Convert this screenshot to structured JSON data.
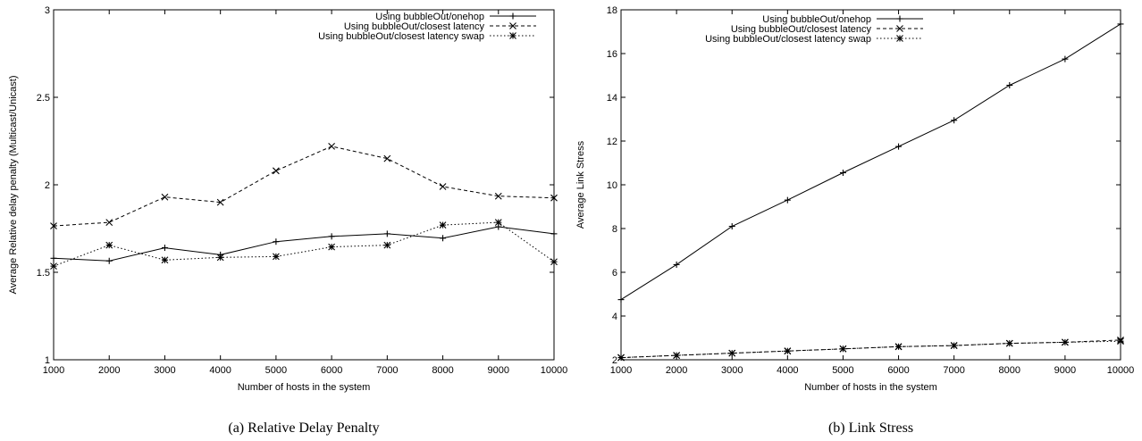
{
  "chart_data": [
    {
      "type": "line",
      "caption": "(a) Relative Delay Penalty",
      "xlabel": "Number of hosts in the system",
      "ylabel": "Average Relative delay penalty (Multicast/Unicast)",
      "x": [
        1000,
        2000,
        3000,
        4000,
        5000,
        6000,
        7000,
        8000,
        9000,
        10000
      ],
      "xlim": [
        1000,
        10000
      ],
      "ylim": [
        1,
        3
      ],
      "xticks": [
        "1000",
        "2000",
        "3000",
        "4000",
        "5000",
        "6000",
        "7000",
        "8000",
        "9000",
        "10000"
      ],
      "yticks": [
        "1",
        "1.5",
        "2",
        "2.5",
        "3"
      ],
      "ytick_values": [
        1,
        1.5,
        2,
        2.5,
        3
      ],
      "grid": false,
      "legend_position": "top-right",
      "series": [
        {
          "name": "Using bubbleOut/onehop",
          "marker": "plus",
          "dash": "solid",
          "values": [
            1.58,
            1.565,
            1.64,
            1.6,
            1.675,
            1.705,
            1.72,
            1.695,
            1.76,
            1.72
          ]
        },
        {
          "name": "Using bubbleOut/closest latency",
          "marker": "cross",
          "dash": "dashed",
          "values": [
            1.765,
            1.785,
            1.93,
            1.9,
            2.08,
            2.22,
            2.15,
            1.99,
            1.935,
            1.925
          ]
        },
        {
          "name": "Using bubbleOut/closest latency swap",
          "marker": "star",
          "dash": "dotted",
          "values": [
            1.535,
            1.655,
            1.57,
            1.585,
            1.59,
            1.645,
            1.655,
            1.77,
            1.785,
            1.56
          ]
        }
      ]
    },
    {
      "type": "line",
      "caption": "(b) Link Stress",
      "xlabel": "Number of hosts in the system",
      "ylabel": "Average Link Stress",
      "x": [
        1000,
        2000,
        3000,
        4000,
        5000,
        6000,
        7000,
        8000,
        9000,
        10000
      ],
      "xlim": [
        1000,
        10000
      ],
      "ylim": [
        2,
        18
      ],
      "xticks": [
        "1000",
        "2000",
        "3000",
        "4000",
        "5000",
        "6000",
        "7000",
        "8000",
        "9000",
        "10000"
      ],
      "yticks": [
        "2",
        "4",
        "6",
        "8",
        "10",
        "12",
        "14",
        "16",
        "18"
      ],
      "ytick_values": [
        2,
        4,
        6,
        8,
        10,
        12,
        14,
        16,
        18
      ],
      "grid": false,
      "legend_position": "top-right",
      "series": [
        {
          "name": "Using bubbleOut/onehop",
          "marker": "plus",
          "dash": "solid",
          "values": [
            4.75,
            6.35,
            8.1,
            9.3,
            10.55,
            11.75,
            12.95,
            14.55,
            15.75,
            17.35
          ]
        },
        {
          "name": "Using bubbleOut/closest latency",
          "marker": "cross",
          "dash": "dashed",
          "values": [
            2.1,
            2.2,
            2.3,
            2.4,
            2.5,
            2.6,
            2.65,
            2.75,
            2.8,
            2.9
          ]
        },
        {
          "name": "Using bubbleOut/closest latency swap",
          "marker": "star",
          "dash": "dotted",
          "values": [
            2.1,
            2.2,
            2.3,
            2.4,
            2.5,
            2.6,
            2.65,
            2.75,
            2.8,
            2.85
          ]
        }
      ]
    }
  ]
}
